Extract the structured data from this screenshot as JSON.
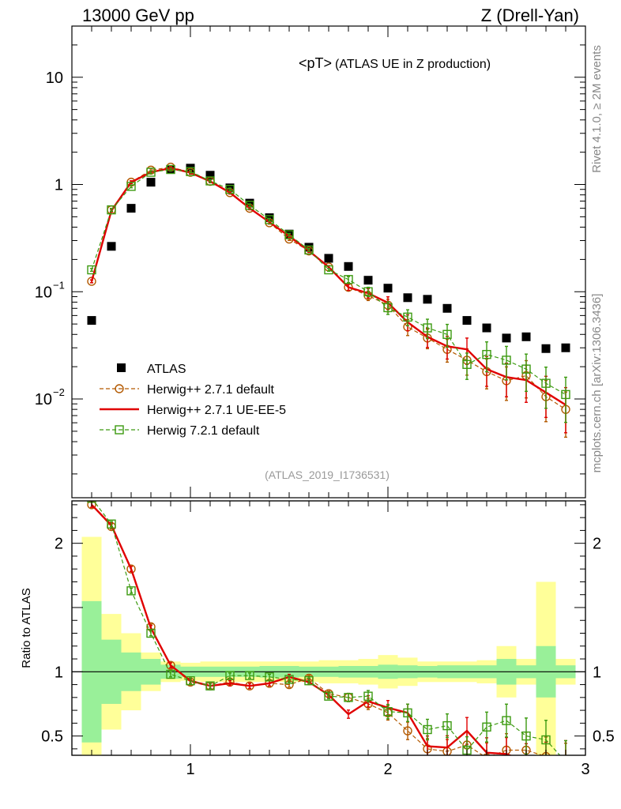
{
  "header": {
    "energy_label": "13000 GeV pp",
    "process_label": "Z (Drell-Yan)"
  },
  "side_labels": {
    "rivet": "Rivet 4.1.0, ≥ 2M events",
    "mcplots": "mcplots.cern.ch [arXiv:1306.3436]"
  },
  "colors": {
    "data": "#000000",
    "h271_default": "#b35900",
    "h271_ueee5": "#e00000",
    "h721_default": "#3c9a10",
    "band_inner": "#99f099",
    "band_outer": "#ffff99"
  },
  "chart_data": [
    {
      "type": "scatter",
      "panel": "main",
      "title": "<pT>",
      "title_suffix": "(ATLAS UE in Z production)",
      "analysis_id": "(ATLAS_2019_I1736531)",
      "xlabel": "",
      "ylabel": "",
      "yscale": "log",
      "xlim": [
        0.4,
        3.0
      ],
      "ylim": [
        0.0012,
        30
      ],
      "ytick_labels": [
        {
          "value": 10,
          "base": "10",
          "exp": ""
        },
        {
          "value": 1,
          "base": "1",
          "exp": ""
        },
        {
          "value": 0.1,
          "base": "10",
          "exp": "−1"
        },
        {
          "value": 0.01,
          "base": "10",
          "exp": "−2"
        }
      ],
      "x": [
        0.5,
        0.6,
        0.7,
        0.8,
        0.9,
        1.0,
        1.1,
        1.2,
        1.3,
        1.4,
        1.5,
        1.6,
        1.7,
        1.8,
        1.9,
        2.0,
        2.1,
        2.2,
        2.3,
        2.4,
        2.5,
        2.6,
        2.7,
        2.8,
        2.9
      ],
      "legend": [
        {
          "key": "atlas",
          "label": "ATLAS"
        },
        {
          "key": "h271",
          "label": "Herwig++ 2.7.1 default"
        },
        {
          "key": "ueee5",
          "label": "Herwig++ 2.7.1 UE-EE-5"
        },
        {
          "key": "h721",
          "label": "Herwig 7.2.1 default"
        }
      ],
      "series": [
        {
          "name": "ATLAS",
          "key": "atlas",
          "values": [
            0.054,
            0.265,
            0.6,
            1.05,
            1.38,
            1.42,
            1.22,
            0.93,
            0.67,
            0.49,
            0.345,
            0.26,
            0.205,
            0.172,
            0.128,
            0.108,
            0.088,
            0.085,
            0.07,
            0.054,
            0.046,
            0.037,
            0.038,
            0.0295,
            0.03
          ]
        },
        {
          "name": "Herwig++ 2.7.1 default",
          "key": "h271",
          "values": [
            0.125,
            0.58,
            1.05,
            1.36,
            1.45,
            1.3,
            1.07,
            0.84,
            0.6,
            0.44,
            0.31,
            0.24,
            0.17,
            0.11,
            0.092,
            0.075,
            0.047,
            0.037,
            0.029,
            0.023,
            0.018,
            0.0148,
            0.0165,
            0.0105,
            0.008
          ]
        },
        {
          "name": "Herwig++ 2.7.1 UE-EE-5",
          "key": "ueee5",
          "values": [
            0.125,
            0.57,
            1.05,
            1.3,
            1.42,
            1.29,
            1.07,
            0.84,
            0.6,
            0.445,
            0.33,
            0.24,
            0.17,
            0.11,
            0.097,
            0.079,
            0.052,
            0.038,
            0.031,
            0.029,
            0.019,
            0.016,
            0.015,
            0.0115,
            0.0088
          ]
        },
        {
          "name": "Herwig 7.2.1 default",
          "key": "h721",
          "values": [
            0.16,
            0.58,
            0.96,
            1.3,
            1.38,
            1.32,
            1.08,
            0.9,
            0.64,
            0.47,
            0.34,
            0.245,
            0.16,
            0.13,
            0.1,
            0.071,
            0.058,
            0.046,
            0.04,
            0.021,
            0.026,
            0.023,
            0.019,
            0.014,
            0.011
          ]
        }
      ]
    },
    {
      "type": "scatter",
      "panel": "ratio",
      "xlabel": "",
      "ylabel": "Ratio to ATLAS",
      "xlim": [
        0.4,
        3.0
      ],
      "ylim": [
        0.35,
        2.33
      ],
      "yticks": [
        0.5,
        1,
        2
      ],
      "ytick_labels": [
        "0.5",
        "1",
        "2"
      ],
      "xticks": [
        1,
        2,
        3
      ],
      "xtick_labels": [
        "1",
        "2",
        "3"
      ],
      "reference_line": 1,
      "x": [
        0.5,
        0.6,
        0.7,
        0.8,
        0.9,
        1.0,
        1.1,
        1.2,
        1.3,
        1.4,
        1.5,
        1.6,
        1.7,
        1.8,
        1.9,
        2.0,
        2.1,
        2.2,
        2.3,
        2.4,
        2.5,
        2.6,
        2.7,
        2.8,
        2.9
      ],
      "band_inner": [
        0.55,
        0.25,
        0.15,
        0.1,
        0.055,
        0.04,
        0.04,
        0.04,
        0.04,
        0.045,
        0.045,
        0.04,
        0.04,
        0.045,
        0.045,
        0.055,
        0.05,
        0.045,
        0.05,
        0.05,
        0.05,
        0.1,
        0.05,
        0.2,
        0.05
      ],
      "band_outer": [
        1.05,
        0.45,
        0.3,
        0.15,
        0.08,
        0.07,
        0.08,
        0.08,
        0.08,
        0.08,
        0.08,
        0.08,
        0.09,
        0.09,
        0.1,
        0.13,
        0.11,
        0.08,
        0.08,
        0.08,
        0.09,
        0.2,
        0.1,
        0.7,
        0.1
      ],
      "series": [
        {
          "name": "Herwig++ 2.7.1 default",
          "key": "h271",
          "values": [
            2.3,
            2.13,
            1.8,
            1.35,
            1.05,
            0.92,
            0.89,
            0.92,
            0.89,
            0.91,
            0.9,
            0.95,
            0.83,
            0.8,
            0.75,
            0.68,
            0.54,
            0.4,
            0.38,
            0.43,
            0.33,
            0.39,
            0.39,
            0.34,
            0.28
          ]
        },
        {
          "name": "Herwig++ 2.7.1 UE-EE-5",
          "key": "ueee5",
          "values": [
            2.3,
            2.14,
            1.8,
            1.34,
            1.05,
            0.93,
            0.89,
            0.91,
            0.89,
            0.91,
            0.96,
            0.92,
            0.82,
            0.67,
            0.77,
            0.72,
            0.68,
            0.42,
            0.41,
            0.54,
            0.37,
            0.36,
            0.3,
            0.3,
            0.3
          ]
        },
        {
          "name": "Herwig 7.2.1 default",
          "key": "h721",
          "values": [
            2.35,
            2.15,
            1.63,
            1.3,
            0.98,
            0.93,
            0.89,
            0.97,
            0.97,
            0.96,
            0.94,
            0.93,
            0.81,
            0.8,
            0.81,
            0.69,
            0.68,
            0.55,
            0.58,
            0.39,
            0.57,
            0.62,
            0.5,
            0.47,
            0.3
          ]
        }
      ]
    }
  ]
}
